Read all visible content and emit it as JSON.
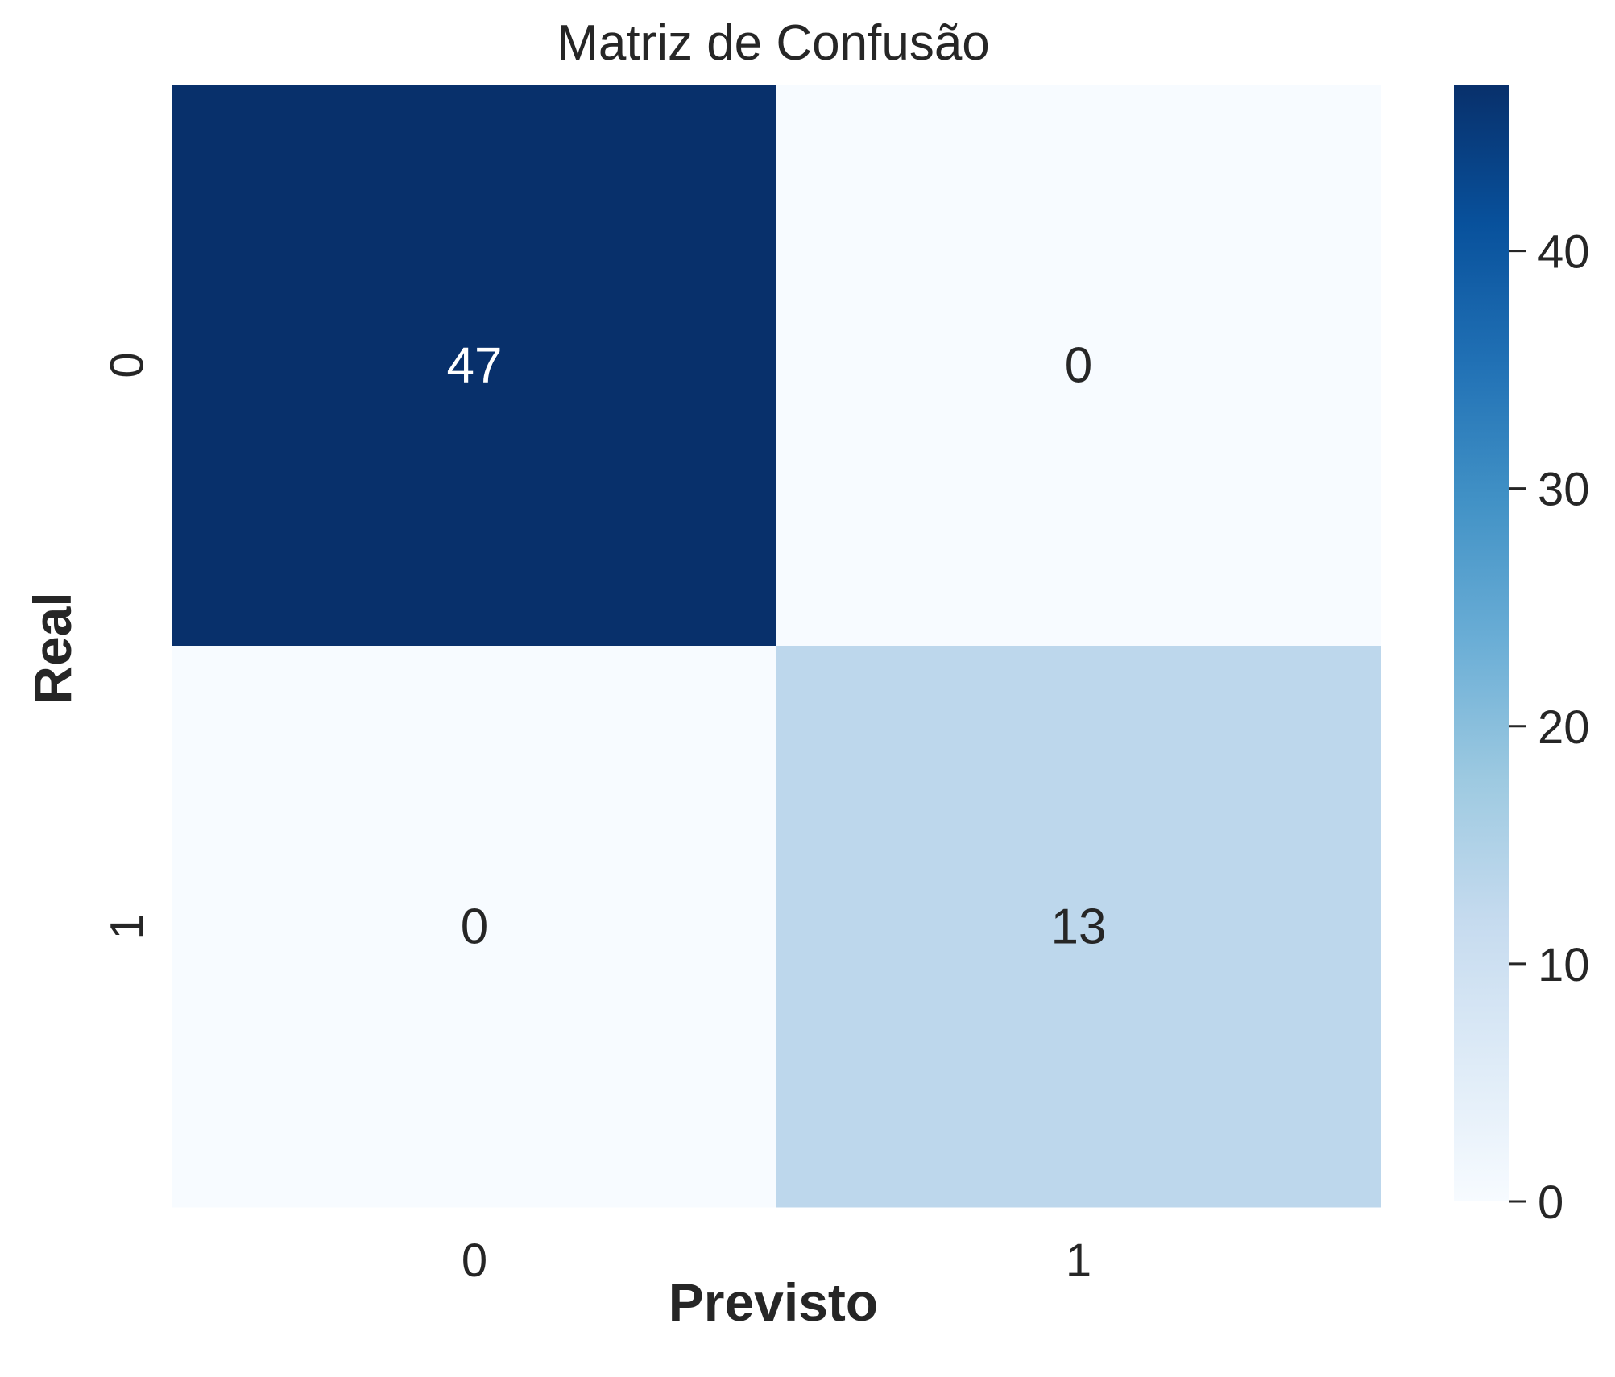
{
  "chart_data": {
    "type": "heatmap",
    "title": "Matriz de Confusão",
    "xlabel": "Previsto",
    "ylabel": "Real",
    "x_categories": [
      "0",
      "1"
    ],
    "y_categories": [
      "0",
      "1"
    ],
    "values": [
      [
        47,
        0
      ],
      [
        0,
        13
      ]
    ],
    "colorbar": {
      "min": 0,
      "max": 47,
      "ticks": [
        0,
        10,
        20,
        30,
        40
      ],
      "tick_labels": [
        "0",
        "10",
        "20",
        "30",
        "40"
      ]
    },
    "colormap": {
      "name": "Blues",
      "stops": [
        "#f7fbff",
        "#deebf7",
        "#c6dbef",
        "#9ecae1",
        "#6baed6",
        "#4292c6",
        "#2171b5",
        "#08519c",
        "#08306b"
      ]
    },
    "annotation_colors": {
      "dark": "#262626",
      "light": "#ffffff"
    }
  }
}
